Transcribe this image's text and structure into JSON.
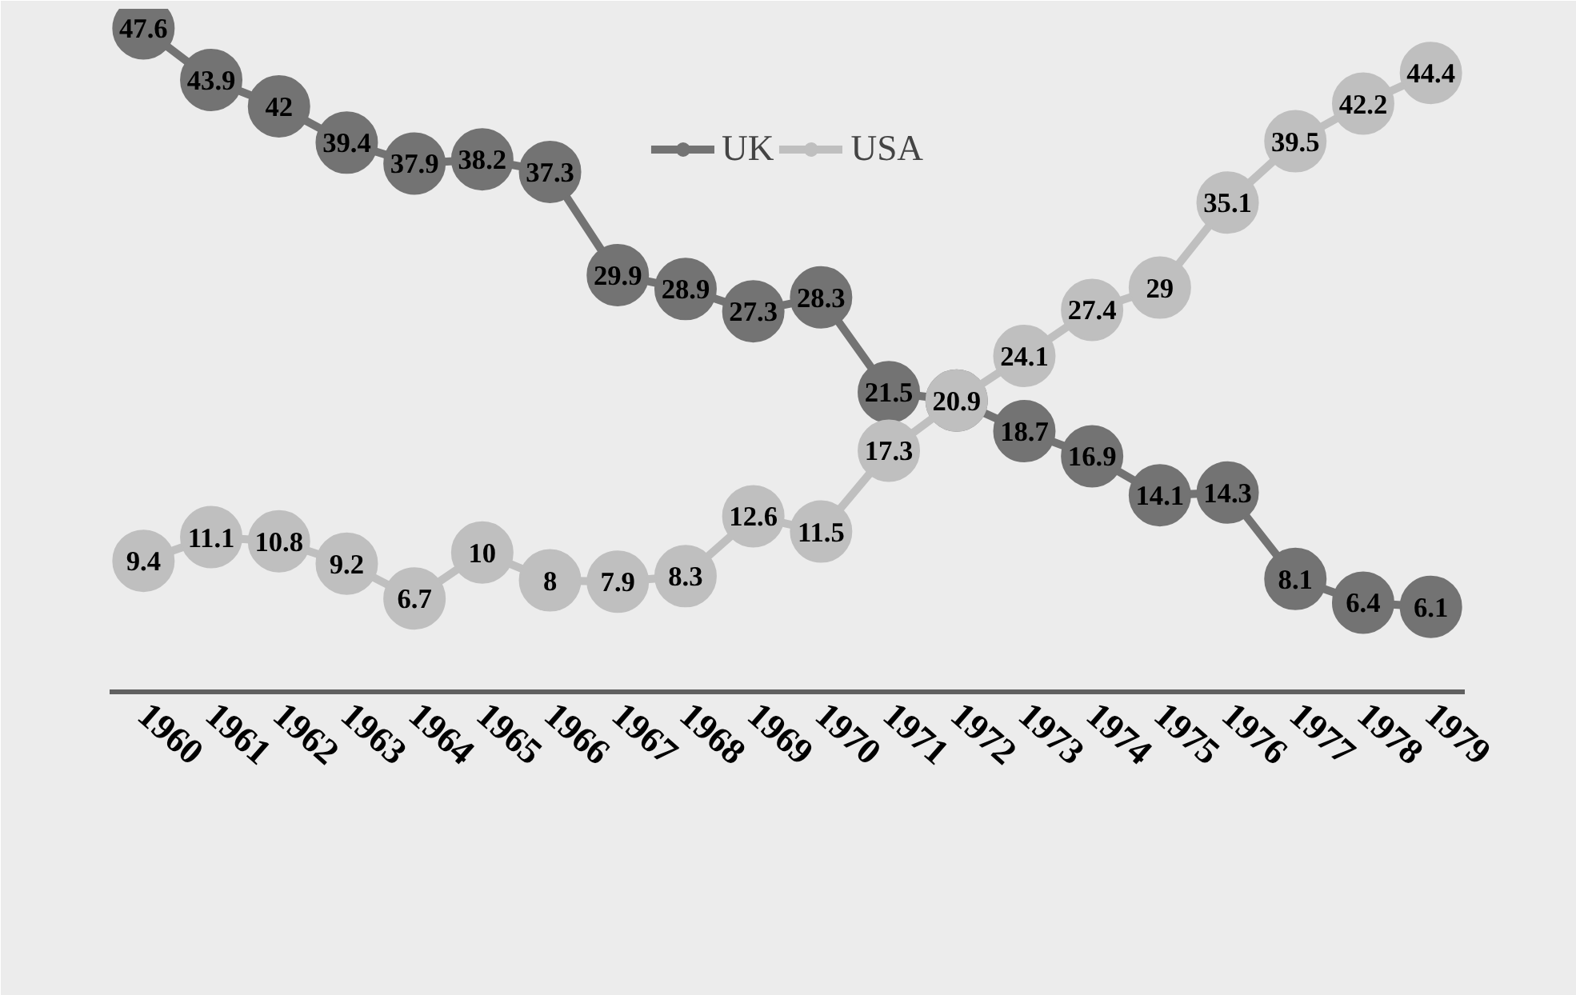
{
  "chart_data": {
    "type": "line",
    "categories": [
      "1960",
      "1961",
      "1962",
      "1963",
      "1964",
      "1965",
      "1966",
      "1967",
      "1968",
      "1969",
      "1970",
      "1971",
      "1972",
      "1973",
      "1974",
      "1975",
      "1976",
      "1977",
      "1978",
      "1979"
    ],
    "series": [
      {
        "name": "UK",
        "color": "#737373",
        "values": [
          47.6,
          43.9,
          42,
          39.4,
          37.9,
          38.2,
          37.3,
          29.9,
          28.9,
          27.3,
          28.3,
          21.5,
          20.9,
          18.7,
          16.9,
          14.1,
          14.3,
          8.1,
          6.4,
          6.1
        ]
      },
      {
        "name": "USA",
        "color": "#bfbfbf",
        "values": [
          9.4,
          11.1,
          10.8,
          9.2,
          6.7,
          10,
          8,
          7.9,
          8.3,
          12.6,
          11.5,
          17.3,
          20.9,
          24.1,
          27.4,
          29,
          35.1,
          39.5,
          42.2,
          44.4
        ],
        "value_labels": [
          "9.4",
          "11.1",
          "10.8",
          "9.2",
          "6.7",
          "10",
          "8",
          "7.9",
          "8.3",
          "12.6",
          "11.5",
          "17.3",
          null,
          "24.1",
          "27.4",
          "29",
          "35.1",
          "39.5",
          "42.2",
          "44.4"
        ]
      }
    ],
    "ylim": [
      0,
      49
    ],
    "data_labels": true,
    "marker": "circle",
    "line_style": "solid",
    "legend": "top",
    "grid": false
  }
}
